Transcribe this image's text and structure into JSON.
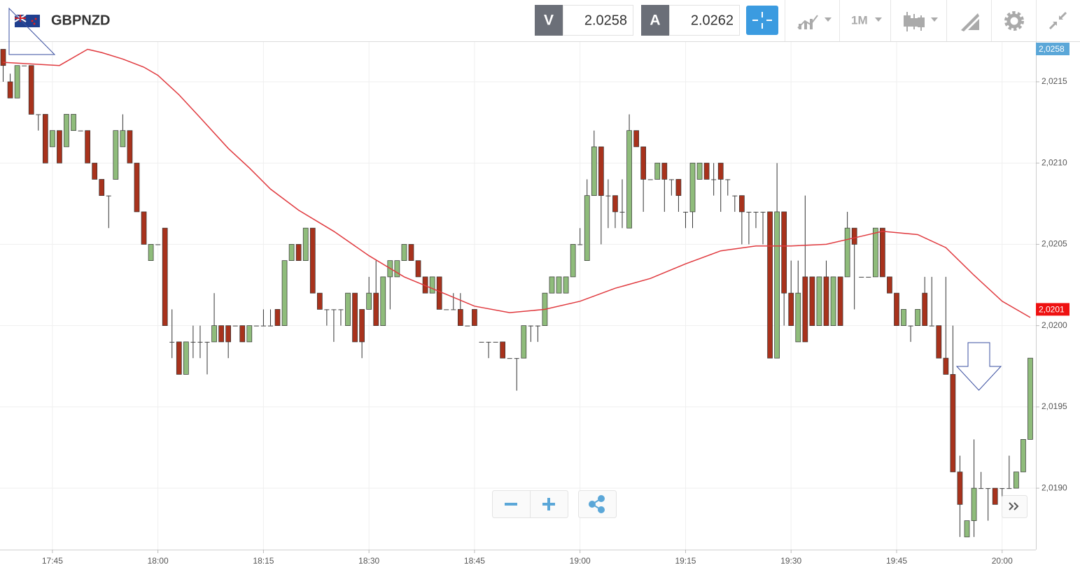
{
  "header": {
    "symbol": "GBPNZD",
    "bid_label": "V",
    "bid": "2.0258",
    "ask_label": "A",
    "ask": "2.0262",
    "timeframe": "1M"
  },
  "chart_data": {
    "type": "candlestick",
    "x": [
      "17:38",
      "17:39",
      "17:40",
      "17:41",
      "17:42",
      "17:43",
      "17:44",
      "17:45",
      "17:46",
      "17:47",
      "17:48",
      "17:49",
      "17:50",
      "17:51",
      "17:52",
      "17:53",
      "17:54",
      "17:55",
      "17:56",
      "17:57",
      "17:58",
      "17:59",
      "18:00",
      "18:01",
      "18:02",
      "18:03",
      "18:04",
      "18:05",
      "18:06",
      "18:07",
      "18:08",
      "18:09",
      "18:10",
      "18:11",
      "18:12",
      "18:13",
      "18:14",
      "18:15",
      "18:16",
      "18:17",
      "18:18",
      "18:19",
      "18:20",
      "18:21",
      "18:22",
      "18:23",
      "18:24",
      "18:25",
      "18:26",
      "18:27",
      "18:28",
      "18:29",
      "18:30",
      "18:31",
      "18:32",
      "18:33",
      "18:34",
      "18:35",
      "18:36",
      "18:37",
      "18:38",
      "18:39",
      "18:40",
      "18:41",
      "18:42",
      "18:43",
      "18:44",
      "18:45",
      "18:46",
      "18:47",
      "18:48",
      "18:49",
      "18:50",
      "18:51",
      "18:52",
      "18:53",
      "18:54",
      "18:55",
      "18:56",
      "18:57",
      "18:58",
      "18:59",
      "19:00",
      "19:01",
      "19:02",
      "19:03",
      "19:04",
      "19:05",
      "19:06",
      "19:07",
      "19:08",
      "19:09",
      "19:10",
      "19:11",
      "19:12",
      "19:13",
      "19:14",
      "19:15",
      "19:16",
      "19:17",
      "19:18",
      "19:19",
      "19:20",
      "19:21",
      "19:22",
      "19:23",
      "19:24",
      "19:25",
      "19:26",
      "19:27",
      "19:28",
      "19:29",
      "19:30",
      "19:31",
      "19:32",
      "19:33",
      "19:34",
      "19:35",
      "19:36",
      "19:37",
      "19:38",
      "19:39",
      "19:40",
      "19:41",
      "19:42",
      "19:43",
      "19:44",
      "19:45",
      "19:46",
      "19:47",
      "19:48",
      "19:49",
      "19:50",
      "19:51",
      "19:52",
      "19:53",
      "19:54",
      "19:55",
      "19:56",
      "19:57",
      "19:58",
      "19:59",
      "20:00",
      "20:01",
      "20:02",
      "20:03",
      "20:04"
    ],
    "open": [
      2.0217,
      2.0215,
      2.0214,
      2.0216,
      2.0216,
      2.0213,
      2.0213,
      2.0211,
      2.0212,
      2.0211,
      2.0212,
      2.0212,
      2.0212,
      2.021,
      2.0209,
      2.0208,
      2.0209,
      2.0211,
      2.0212,
      2.021,
      2.0207,
      2.0204,
      2.0205,
      2.0206,
      2.0199,
      2.0199,
      2.0197,
      2.0199,
      2.0199,
      2.0199,
      2.0199,
      2.02,
      2.02,
      2.02,
      2.02,
      2.0199,
      2.02,
      2.02,
      2.02,
      2.0201,
      2.02,
      2.0204,
      2.0205,
      2.0204,
      2.0206,
      2.0202,
      2.0201,
      2.0201,
      2.0201,
      2.02,
      2.0202,
      2.0201,
      2.0201,
      2.0202,
      2.02,
      2.0203,
      2.0203,
      2.0204,
      2.0205,
      2.0204,
      2.0203,
      2.0202,
      2.0203,
      2.0201,
      2.0201,
      2.0201,
      2.02,
      2.0201,
      2.0199,
      2.0199,
      2.0199,
      2.0199,
      2.0198,
      2.0198,
      2.0198,
      2.02,
      2.02,
      2.02,
      2.0202,
      2.0202,
      2.0202,
      2.0203,
      2.0205,
      2.0204,
      2.0208,
      2.0211,
      2.0208,
      2.0208,
      2.0207,
      2.0206,
      2.0212,
      2.0211,
      2.0209,
      2.0209,
      2.021,
      2.0209,
      2.0209,
      2.0207,
      2.0207,
      2.0209,
      2.021,
      2.0209,
      2.021,
      2.0209,
      2.0208,
      2.0208,
      2.0207,
      2.0207,
      2.0207,
      2.0207,
      2.0198,
      2.0207,
      2.0202,
      2.0199,
      2.0203,
      2.0203,
      2.02,
      2.0203,
      2.02,
      2.0203,
      2.0203,
      2.0206,
      2.0203,
      2.0203,
      2.0203,
      2.0206,
      2.0203,
      2.0202,
      2.02,
      2.02,
      2.02,
      2.0202,
      2.02,
      2.02,
      2.0198,
      2.0197,
      2.0191,
      2.0187,
      2.0188,
      2.019,
      2.019,
      2.019,
      2.019,
      2.019,
      2.019,
      2.0191,
      2.0193
    ],
    "high": [
      2.0217,
      2.02155,
      2.0216,
      2.0216,
      2.0216,
      2.0213,
      2.0213,
      2.0212,
      2.0212,
      2.0213,
      2.0213,
      2.0212,
      2.0212,
      2.021,
      2.0209,
      2.0208,
      2.0212,
      2.0213,
      2.0212,
      2.021,
      2.0207,
      2.0205,
      2.0205,
      2.0206,
      2.0201,
      2.0199,
      2.0199,
      2.02,
      2.02,
      2.0199,
      2.0202,
      2.02,
      2.02,
      2.02,
      2.02,
      2.02,
      2.02,
      2.0201,
      2.0201,
      2.0201,
      2.0204,
      2.0205,
      2.0205,
      2.0206,
      2.0206,
      2.0202,
      2.0201,
      2.0201,
      2.0201,
      2.0202,
      2.0202,
      2.0201,
      2.0203,
      2.0204,
      2.0203,
      2.0204,
      2.0204,
      2.0205,
      2.0205,
      2.0204,
      2.0203,
      2.0203,
      2.0203,
      2.0201,
      2.0202,
      2.0202,
      2.02,
      2.0201,
      2.0199,
      2.0199,
      2.0199,
      2.0199,
      2.0198,
      2.0198,
      2.02,
      2.02,
      2.02,
      2.0202,
      2.0203,
      2.0203,
      2.0203,
      2.0205,
      2.0206,
      2.0209,
      2.0212,
      2.0211,
      2.0209,
      2.0208,
      2.0209,
      2.0213,
      2.0212,
      2.0211,
      2.0209,
      2.021,
      2.021,
      2.0209,
      2.0209,
      2.0207,
      2.021,
      2.021,
      2.021,
      2.021,
      2.021,
      2.0209,
      2.0208,
      2.0208,
      2.0207,
      2.0207,
      2.0207,
      2.0207,
      2.021,
      2.0207,
      2.0204,
      2.0204,
      2.0208,
      2.0203,
      2.0203,
      2.0204,
      2.0203,
      2.0203,
      2.0207,
      2.0206,
      2.0203,
      2.0203,
      2.0206,
      2.0206,
      2.0203,
      2.0202,
      2.0201,
      2.02,
      2.0201,
      2.0203,
      2.0203,
      2.02,
      2.0203,
      2.02,
      2.0192,
      2.0188,
      2.0193,
      2.0191,
      2.019,
      2.019,
      2.019,
      2.0192,
      2.0191,
      2.0193,
      2.0198
    ],
    "low": [
      2.0215,
      2.0214,
      2.0214,
      2.0216,
      2.0213,
      2.0212,
      2.021,
      2.0211,
      2.021,
      2.0211,
      2.0212,
      2.0212,
      2.021,
      2.0209,
      2.0208,
      2.0206,
      2.0209,
      2.0211,
      2.021,
      2.0207,
      2.0205,
      2.0204,
      2.0205,
      2.02,
      2.0198,
      2.0197,
      2.0197,
      2.0198,
      2.0198,
      2.0197,
      2.0199,
      2.0199,
      2.0198,
      2.02,
      2.0199,
      2.0199,
      2.02,
      2.02,
      2.02,
      2.02,
      2.02,
      2.0204,
      2.0204,
      2.0204,
      2.0202,
      2.0201,
      2.02,
      2.0199,
      2.02,
      2.02,
      2.0199,
      2.0198,
      2.0201,
      2.02,
      2.02,
      2.0201,
      2.0203,
      2.0204,
      2.0204,
      2.0203,
      2.0202,
      2.0202,
      2.0201,
      2.0201,
      2.0201,
      2.02,
      2.02,
      2.02,
      2.0199,
      2.0198,
      2.0199,
      2.0198,
      2.0198,
      2.0196,
      2.0198,
      2.0199,
      2.0199,
      2.02,
      2.0202,
      2.0202,
      2.0202,
      2.0203,
      2.0205,
      2.0204,
      2.0208,
      2.0205,
      2.0206,
      2.0206,
      2.0206,
      2.0206,
      2.0211,
      2.0207,
      2.0209,
      2.0209,
      2.0207,
      2.0208,
      2.0207,
      2.0206,
      2.0206,
      2.0209,
      2.0209,
      2.0208,
      2.0207,
      2.0208,
      2.0207,
      2.0205,
      2.0205,
      2.0206,
      2.0205,
      2.0198,
      2.0198,
      2.02,
      2.02,
      2.0199,
      2.0199,
      2.02,
      2.02,
      2.02,
      2.02,
      2.02,
      2.0203,
      2.0201,
      2.0203,
      2.0203,
      2.0203,
      2.0203,
      2.0202,
      2.02,
      2.02,
      2.0199,
      2.02,
      2.02,
      2.02,
      2.0198,
      2.0197,
      2.0191,
      2.0187,
      2.0187,
      2.0187,
      2.019,
      2.0188,
      2.0189,
      2.0189,
      2.019,
      2.019,
      2.0191,
      2.0193
    ],
    "close": [
      2.0216,
      2.0214,
      2.0216,
      2.0216,
      2.0213,
      2.0213,
      2.021,
      2.0212,
      2.021,
      2.0213,
      2.0213,
      2.0212,
      2.021,
      2.0209,
      2.0208,
      2.0208,
      2.0212,
      2.0212,
      2.021,
      2.0207,
      2.0205,
      2.0205,
      2.0205,
      2.02,
      2.0199,
      2.0197,
      2.0199,
      2.0199,
      2.0199,
      2.0199,
      2.02,
      2.0199,
      2.0199,
      2.02,
      2.0199,
      2.02,
      2.02,
      2.02,
      2.02,
      2.02,
      2.0204,
      2.0205,
      2.0204,
      2.0206,
      2.0202,
      2.0201,
      2.0201,
      2.0201,
      2.0201,
      2.0202,
      2.0199,
      2.0199,
      2.0202,
      2.02,
      2.0203,
      2.0204,
      2.0204,
      2.0205,
      2.0204,
      2.0203,
      2.0202,
      2.0203,
      2.0201,
      2.0201,
      2.0201,
      2.02,
      2.02,
      2.02,
      2.0199,
      2.0199,
      2.0199,
      2.0198,
      2.0198,
      2.0198,
      2.02,
      2.02,
      2.02,
      2.0202,
      2.0203,
      2.0203,
      2.0203,
      2.0205,
      2.0205,
      2.0208,
      2.0211,
      2.0208,
      2.0208,
      2.0207,
      2.0207,
      2.0212,
      2.0211,
      2.0209,
      2.0209,
      2.021,
      2.0209,
      2.0209,
      2.0208,
      2.0207,
      2.021,
      2.021,
      2.0209,
      2.0209,
      2.0209,
      2.0209,
      2.0208,
      2.0207,
      2.0207,
      2.0207,
      2.0207,
      2.0198,
      2.0207,
      2.0202,
      2.02,
      2.0202,
      2.0199,
      2.02,
      2.0203,
      2.02,
      2.0203,
      2.02,
      2.0206,
      2.0205,
      2.0203,
      2.0203,
      2.0206,
      2.0203,
      2.0202,
      2.02,
      2.0201,
      2.02,
      2.0201,
      2.02,
      2.02,
      2.0198,
      2.0197,
      2.0191,
      2.0189,
      2.0188,
      2.019,
      2.019,
      2.019,
      2.0189,
      2.019,
      2.019,
      2.0191,
      2.0193,
      2.0198
    ],
    "up_color": "#8fbc7b",
    "down_color": "#a8321c",
    "flat_color": "#444444",
    "moving_average": {
      "color": "#e0393e",
      "x": [
        "17:38",
        "17:46",
        "17:50",
        "17:52",
        "17:55",
        "17:58",
        "18:00",
        "18:03",
        "18:06",
        "18:10",
        "18:13",
        "18:16",
        "18:20",
        "18:25",
        "18:30",
        "18:35",
        "18:40",
        "18:45",
        "18:50",
        "18:55",
        "19:00",
        "19:05",
        "19:10",
        "19:15",
        "19:20",
        "19:25",
        "19:30",
        "19:35",
        "19:40",
        "19:43",
        "19:48",
        "19:52",
        "19:56",
        "20:00",
        "20:04"
      ],
      "values": [
        2.02162,
        2.0216,
        2.0217,
        2.02168,
        2.02164,
        2.02159,
        2.02154,
        2.02142,
        2.02128,
        2.02109,
        2.02097,
        2.02084,
        2.02071,
        2.02058,
        2.02043,
        2.0203,
        2.02021,
        2.02012,
        2.02008,
        2.0201,
        2.02015,
        2.02023,
        2.02029,
        2.02038,
        2.02046,
        2.02049,
        2.02049,
        2.0205,
        2.02055,
        2.02058,
        2.02056,
        2.02048,
        2.02031,
        2.02015,
        2.02005
      ]
    },
    "xlim": [
      "17:37:33",
      "20:04:48"
    ],
    "xticks": [
      "17:45",
      "18:00",
      "18:15",
      "18:30",
      "18:45",
      "19:00",
      "19:15",
      "19:30",
      "19:45",
      "20:00"
    ],
    "ylim": [
      2.018622,
      2.021745
    ],
    "yticks": [
      {
        "value": 2.019,
        "label": "2,0190"
      },
      {
        "value": 2.0195,
        "label": "2,0195"
      },
      {
        "value": 2.02,
        "label": "2,0200"
      },
      {
        "value": 2.0205,
        "label": "2,0205"
      },
      {
        "value": 2.021,
        "label": "2,0210"
      },
      {
        "value": 2.0215,
        "label": "2,0215"
      }
    ],
    "grid": true,
    "price_labels": [
      {
        "value": 2.0258,
        "label": "2,0258",
        "color": "#5ba7d8"
      },
      {
        "value": 2.0201,
        "label": "2,0201",
        "color": "#ee1111"
      }
    ]
  }
}
